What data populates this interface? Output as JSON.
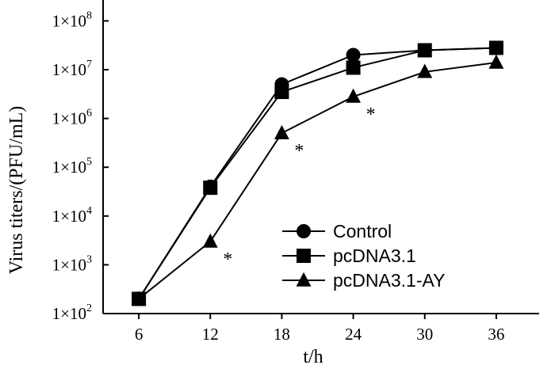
{
  "chart_data": {
    "type": "line",
    "xlabel": "t/h",
    "ylabel": "Virus titers/(PFU/mL)",
    "x": [
      6,
      12,
      18,
      24,
      30,
      36
    ],
    "xticks": [
      "6",
      "12",
      "18",
      "24",
      "30",
      "36"
    ],
    "yscale": "log",
    "ylim": [
      100,
      100000000
    ],
    "yticks": [
      {
        "value": 100,
        "mantissa": "1×10",
        "exp": "2"
      },
      {
        "value": 1000,
        "mantissa": "1×10",
        "exp": "3"
      },
      {
        "value": 10000,
        "mantissa": "1×10",
        "exp": "4"
      },
      {
        "value": 100000,
        "mantissa": "1×10",
        "exp": "5"
      },
      {
        "value": 1000000,
        "mantissa": "1×10",
        "exp": "6"
      },
      {
        "value": 10000000,
        "mantissa": "1×10",
        "exp": "7"
      },
      {
        "value": 100000000,
        "mantissa": "1×10",
        "exp": "8"
      }
    ],
    "series": [
      {
        "name": "Control",
        "marker": "circle",
        "values": [
          200,
          40000,
          5000000,
          20000000,
          25000000,
          28000000
        ]
      },
      {
        "name": "pcDNA3.1",
        "marker": "square",
        "values": [
          200,
          38000,
          3500000,
          11000000,
          25000000,
          28000000
        ]
      },
      {
        "name": "pcDNA3.1-AY",
        "marker": "triangle",
        "values": [
          200,
          3000,
          500000,
          2800000,
          9000000,
          14000000
        ]
      }
    ],
    "annotations": [
      {
        "text": "*",
        "x": 12,
        "series": "pcDNA3.1-AY"
      },
      {
        "text": "*",
        "x": 18,
        "series": "pcDNA3.1-AY"
      },
      {
        "text": "*",
        "x": 24,
        "series": "pcDNA3.1-AY"
      }
    ],
    "legend_position": "bottom-right",
    "grid": false,
    "color": "#000000"
  }
}
